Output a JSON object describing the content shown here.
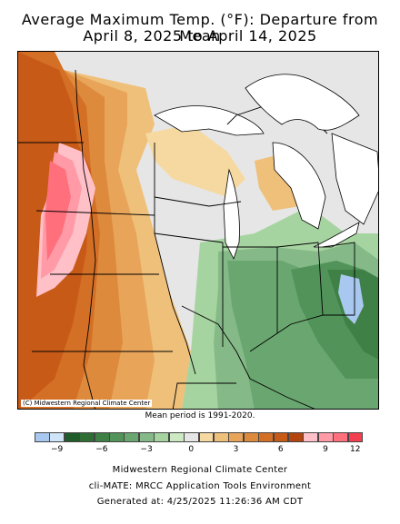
{
  "title": {
    "line1": "Average Maximum Temp. (°F): Departure from Mean",
    "line2": "April 8, 2025 to April 14, 2025"
  },
  "map": {
    "credit": "(C) Midwestern Regional Climate Center",
    "mean_period_note": "Mean period is 1991-2020."
  },
  "legend": {
    "colors": [
      "#a8c8f0",
      "#d0e4f8",
      "#1e5c2a",
      "#2e6e34",
      "#3f8046",
      "#52935a",
      "#6aa770",
      "#85ba88",
      "#a6d4a0",
      "#cde9c4",
      "#e6e6e6",
      "#f5d9a0",
      "#efc07a",
      "#e8a55a",
      "#de8a3c",
      "#d46f26",
      "#c85a18",
      "#b5450f",
      "#ffc0c8",
      "#ff9aa6",
      "#ff6f7c",
      "#f24050"
    ],
    "tick_labels": [
      "−9",
      "−6",
      "−3",
      "0",
      "3",
      "6",
      "9",
      "12"
    ]
  },
  "footer": {
    "line1": "Midwestern Regional Climate Center",
    "line2": "cli-MATE: MRCC Application Tools Environment",
    "line3": "Generated at: 4/25/2025 11:26:36 AM CDT"
  }
}
